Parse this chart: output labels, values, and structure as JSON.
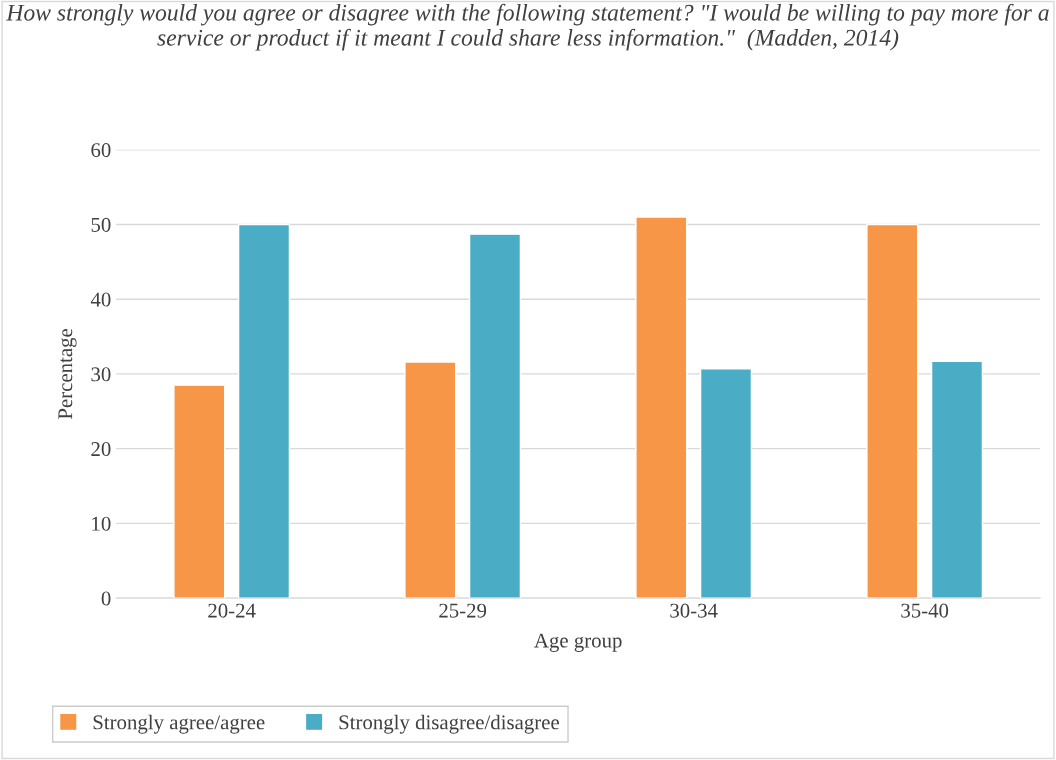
{
  "chart_data": {
    "type": "bar",
    "title": "How strongly would you agree or disagree with the following statement? \"I would be willing to pay more for a service or product if it meant I could share less information.\"  (Madden, 2014)",
    "xlabel": "Age group",
    "ylabel": "Percentage",
    "categories": [
      "20-24",
      "25-29",
      "30-34",
      "35-40"
    ],
    "series": [
      {
        "name": "Strongly agree/agree",
        "color": "#f79646",
        "values": [
          28.5,
          31.6,
          51,
          50
        ]
      },
      {
        "name": "Strongly disagree/disagree",
        "color": "#4bacc6",
        "values": [
          50,
          48.7,
          30.7,
          31.7
        ]
      }
    ],
    "ylim": [
      0,
      60
    ],
    "yticks": [
      0,
      10,
      20,
      30,
      40,
      50,
      60
    ],
    "grid": "y",
    "legend": "bottom"
  }
}
